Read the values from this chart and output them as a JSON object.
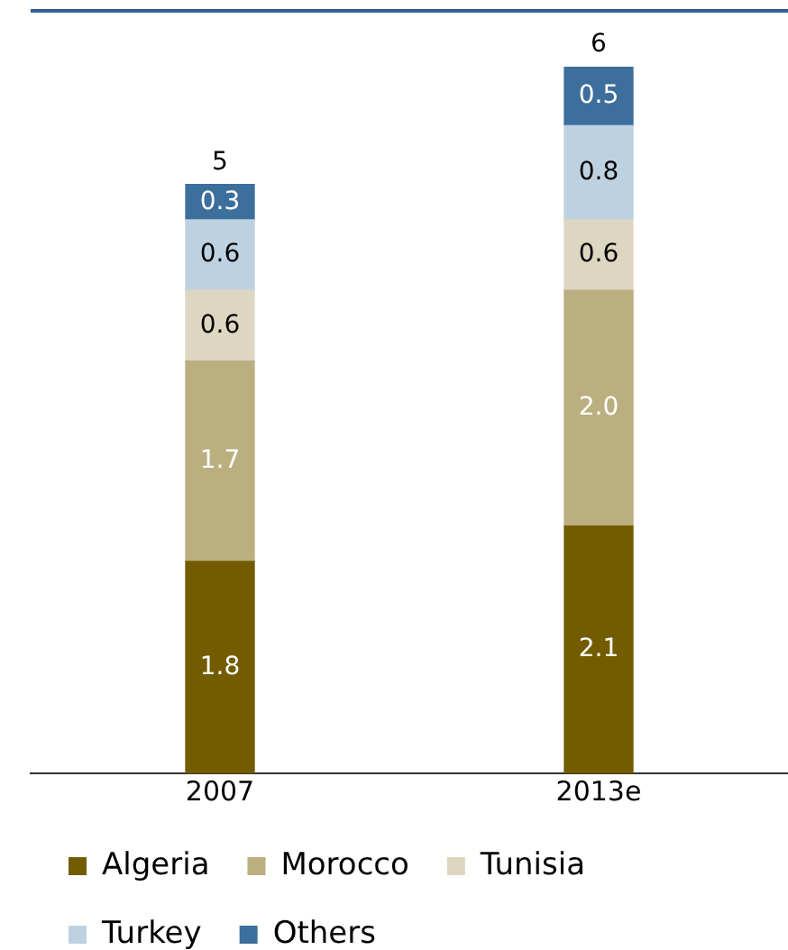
{
  "chart_data": {
    "type": "bar",
    "stacked": true,
    "categories": [
      "2007",
      "2013e"
    ],
    "series": [
      {
        "name": "Algeria",
        "color": "#735c00",
        "values": [
          1.8,
          2.1
        ],
        "value_labels": [
          "1.8",
          "2.1"
        ]
      },
      {
        "name": "Morocco",
        "color": "#bbae7f",
        "values": [
          1.7,
          2.0
        ],
        "value_labels": [
          "1.7",
          "2.0"
        ]
      },
      {
        "name": "Tunisia",
        "color": "#ddd6c1",
        "values": [
          0.6,
          0.6
        ],
        "value_labels": [
          "0.6",
          "0.6"
        ]
      },
      {
        "name": "Turkey",
        "color": "#bed1e1",
        "values": [
          0.6,
          0.8
        ],
        "value_labels": [
          "0.6",
          "0.8"
        ]
      },
      {
        "name": "Others",
        "color": "#3d6f9c",
        "values": [
          0.3,
          0.5
        ],
        "value_labels": [
          "0.3",
          "0.5"
        ]
      }
    ],
    "totals": [
      "5",
      "6"
    ],
    "legend": "bottom"
  }
}
